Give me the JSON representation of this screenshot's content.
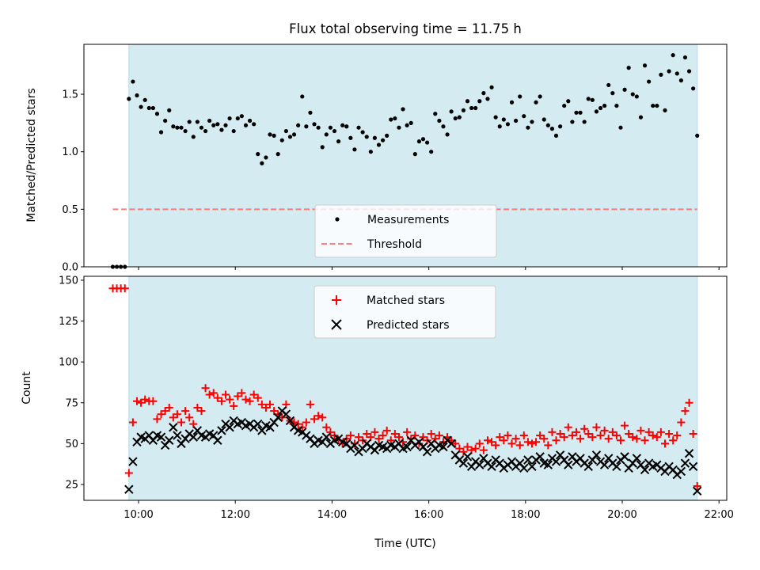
{
  "chart_data": [
    {
      "type": "scatter",
      "title": "Flux total observing time = 11.75 h",
      "xlabel": "",
      "ylabel": "Matched/Predicted stars",
      "xlim": [
        8.87,
        22.16
      ],
      "ylim": [
        0,
        1.934
      ],
      "x_unit": "hours UTC",
      "yticks": [
        0.0,
        0.5,
        1.0,
        1.5
      ],
      "ytick_labels": [
        "0.0",
        "0.5",
        "1.0",
        "1.5"
      ],
      "xticks": [
        10,
        12,
        14,
        16,
        18,
        20,
        22
      ],
      "shaded_span": [
        9.8,
        21.55
      ],
      "shade_color": "#add8e6",
      "legend": {
        "placement": "lower center",
        "entries": [
          "Measurements",
          "Threshold"
        ]
      },
      "series": [
        {
          "name": "Measurements",
          "marker": "dot",
          "color": "#000000",
          "pre_x": [
            9.467,
            9.55,
            9.633,
            9.717
          ],
          "pre_values": [
            0,
            0,
            0,
            0
          ],
          "x_start": 9.8,
          "x_step_minutes": 5,
          "values": [
            1.46,
            1.61,
            1.49,
            1.39,
            1.45,
            1.38,
            1.38,
            1.33,
            1.17,
            1.27,
            1.36,
            1.22,
            1.21,
            1.21,
            1.18,
            1.26,
            1.13,
            1.26,
            1.21,
            1.18,
            1.27,
            1.23,
            1.24,
            1.19,
            1.23,
            1.29,
            1.18,
            1.29,
            1.31,
            1.23,
            1.27,
            1.24,
            0.98,
            0.9,
            0.95,
            1.15,
            1.14,
            0.98,
            1.1,
            1.18,
            1.13,
            1.15,
            1.23,
            1.48,
            1.22,
            1.34,
            1.24,
            1.21,
            1.04,
            1.15,
            1.21,
            1.18,
            1.09,
            1.23,
            1.22,
            1.12,
            1.02,
            1.21,
            1.17,
            1.13,
            1.0,
            1.12,
            1.06,
            1.1,
            1.14,
            1.28,
            1.29,
            1.21,
            1.37,
            1.23,
            1.25,
            0.98,
            1.09,
            1.11,
            1.08,
            1.0,
            1.33,
            1.27,
            1.22,
            1.15,
            1.35,
            1.29,
            1.3,
            1.36,
            1.44,
            1.38,
            1.38,
            1.44,
            1.51,
            1.46,
            1.56,
            1.3,
            1.22,
            1.28,
            1.24,
            1.43,
            1.27,
            1.48,
            1.31,
            1.21,
            1.26,
            1.43,
            1.48,
            1.28,
            1.23,
            1.2,
            1.14,
            1.22,
            1.4,
            1.44,
            1.26,
            1.34,
            1.34,
            1.26,
            1.46,
            1.45,
            1.35,
            1.38,
            1.4,
            1.58,
            1.51,
            1.4,
            1.21,
            1.54,
            1.73,
            1.5,
            1.48,
            1.3,
            1.75,
            1.61,
            1.4,
            1.4,
            1.67,
            1.36,
            1.7,
            1.84,
            1.68,
            1.62,
            1.82,
            1.7,
            1.55,
            1.14
          ]
        },
        {
          "name": "Threshold",
          "type": "line",
          "style": "dashed",
          "color": "#ff6666",
          "value": 0.5,
          "x_range": [
            9.467,
            21.55
          ]
        }
      ]
    },
    {
      "type": "scatter",
      "title": "",
      "xlabel": "Time (UTC)",
      "ylabel": "Count",
      "xlim": [
        8.87,
        22.16
      ],
      "ylim": [
        15.3,
        152.4
      ],
      "yticks": [
        25,
        50,
        75,
        100,
        125,
        150
      ],
      "ytick_labels": [
        "25",
        "50",
        "75",
        "100",
        "125",
        "150"
      ],
      "xticks": [
        10,
        12,
        14,
        16,
        18,
        20,
        22
      ],
      "xtick_labels": [
        "10:00",
        "12:00",
        "14:00",
        "16:00",
        "18:00",
        "20:00",
        "22:00"
      ],
      "shaded_span": [
        9.8,
        21.55
      ],
      "legend": {
        "placement": "upper center",
        "entries": [
          "Matched stars",
          "Predicted stars"
        ]
      },
      "series": [
        {
          "name": "Matched stars",
          "marker": "plus",
          "color": "#ff0000",
          "pre_x": [
            9.467,
            9.55,
            9.633,
            9.717
          ],
          "pre_values": [
            145,
            145,
            145,
            145
          ],
          "x_start": 9.8,
          "x_step_minutes": 5,
          "values": [
            32,
            63,
            76,
            75,
            77,
            76,
            76,
            65,
            68,
            70,
            72,
            66,
            68,
            63,
            70,
            66,
            62,
            72,
            70,
            84,
            80,
            81,
            78,
            76,
            80,
            77,
            73,
            79,
            81,
            77,
            76,
            80,
            78,
            74,
            72,
            74,
            70,
            68,
            66,
            74,
            64,
            63,
            62,
            60,
            63,
            74,
            65,
            67,
            66,
            60,
            57,
            55,
            52,
            50,
            53,
            55,
            50,
            54,
            52,
            56,
            54,
            57,
            53,
            55,
            58,
            52,
            56,
            54,
            51,
            57,
            53,
            55,
            50,
            54,
            52,
            56,
            53,
            55,
            51,
            54,
            52,
            50,
            47,
            45,
            48,
            46,
            47,
            50,
            46,
            52,
            51,
            49,
            54,
            52,
            55,
            50,
            53,
            49,
            55,
            51,
            50,
            51,
            55,
            53,
            49,
            57,
            52,
            56,
            54,
            60,
            55,
            57,
            53,
            59,
            56,
            54,
            60,
            55,
            58,
            53,
            57,
            55,
            52,
            61,
            56,
            54,
            53,
            58,
            52,
            57,
            55,
            54,
            57,
            50,
            56,
            52,
            55,
            63,
            70,
            75,
            56,
            24
          ]
        },
        {
          "name": "Predicted stars",
          "marker": "x",
          "color": "#000000",
          "x_start": 9.8,
          "x_step_minutes": 5,
          "values": [
            22,
            39,
            51,
            54,
            53,
            55,
            52,
            55,
            54,
            49,
            52,
            60,
            55,
            50,
            53,
            56,
            54,
            58,
            55,
            54,
            56,
            55,
            52,
            58,
            62,
            60,
            64,
            62,
            63,
            61,
            62,
            60,
            62,
            58,
            61,
            60,
            63,
            66,
            70,
            68,
            64,
            60,
            58,
            57,
            55,
            53,
            50,
            52,
            51,
            54,
            50,
            52,
            53,
            51,
            50,
            47,
            49,
            45,
            47,
            50,
            48,
            46,
            49,
            48,
            47,
            49,
            48,
            50,
            47,
            48,
            52,
            49,
            51,
            48,
            45,
            50,
            47,
            49,
            48,
            52,
            50,
            43,
            40,
            38,
            42,
            36,
            39,
            37,
            41,
            38,
            36,
            40,
            38,
            35,
            37,
            39,
            36,
            38,
            35,
            40,
            36,
            40,
            42,
            38,
            37,
            41,
            39,
            43,
            40,
            37,
            42,
            39,
            41,
            38,
            36,
            40,
            43,
            39,
            37,
            41,
            38,
            36,
            40,
            42,
            35,
            38,
            41,
            37,
            34,
            38,
            36,
            37,
            35,
            33,
            36,
            34,
            31,
            33,
            38,
            44,
            36,
            21
          ]
        }
      ]
    }
  ]
}
